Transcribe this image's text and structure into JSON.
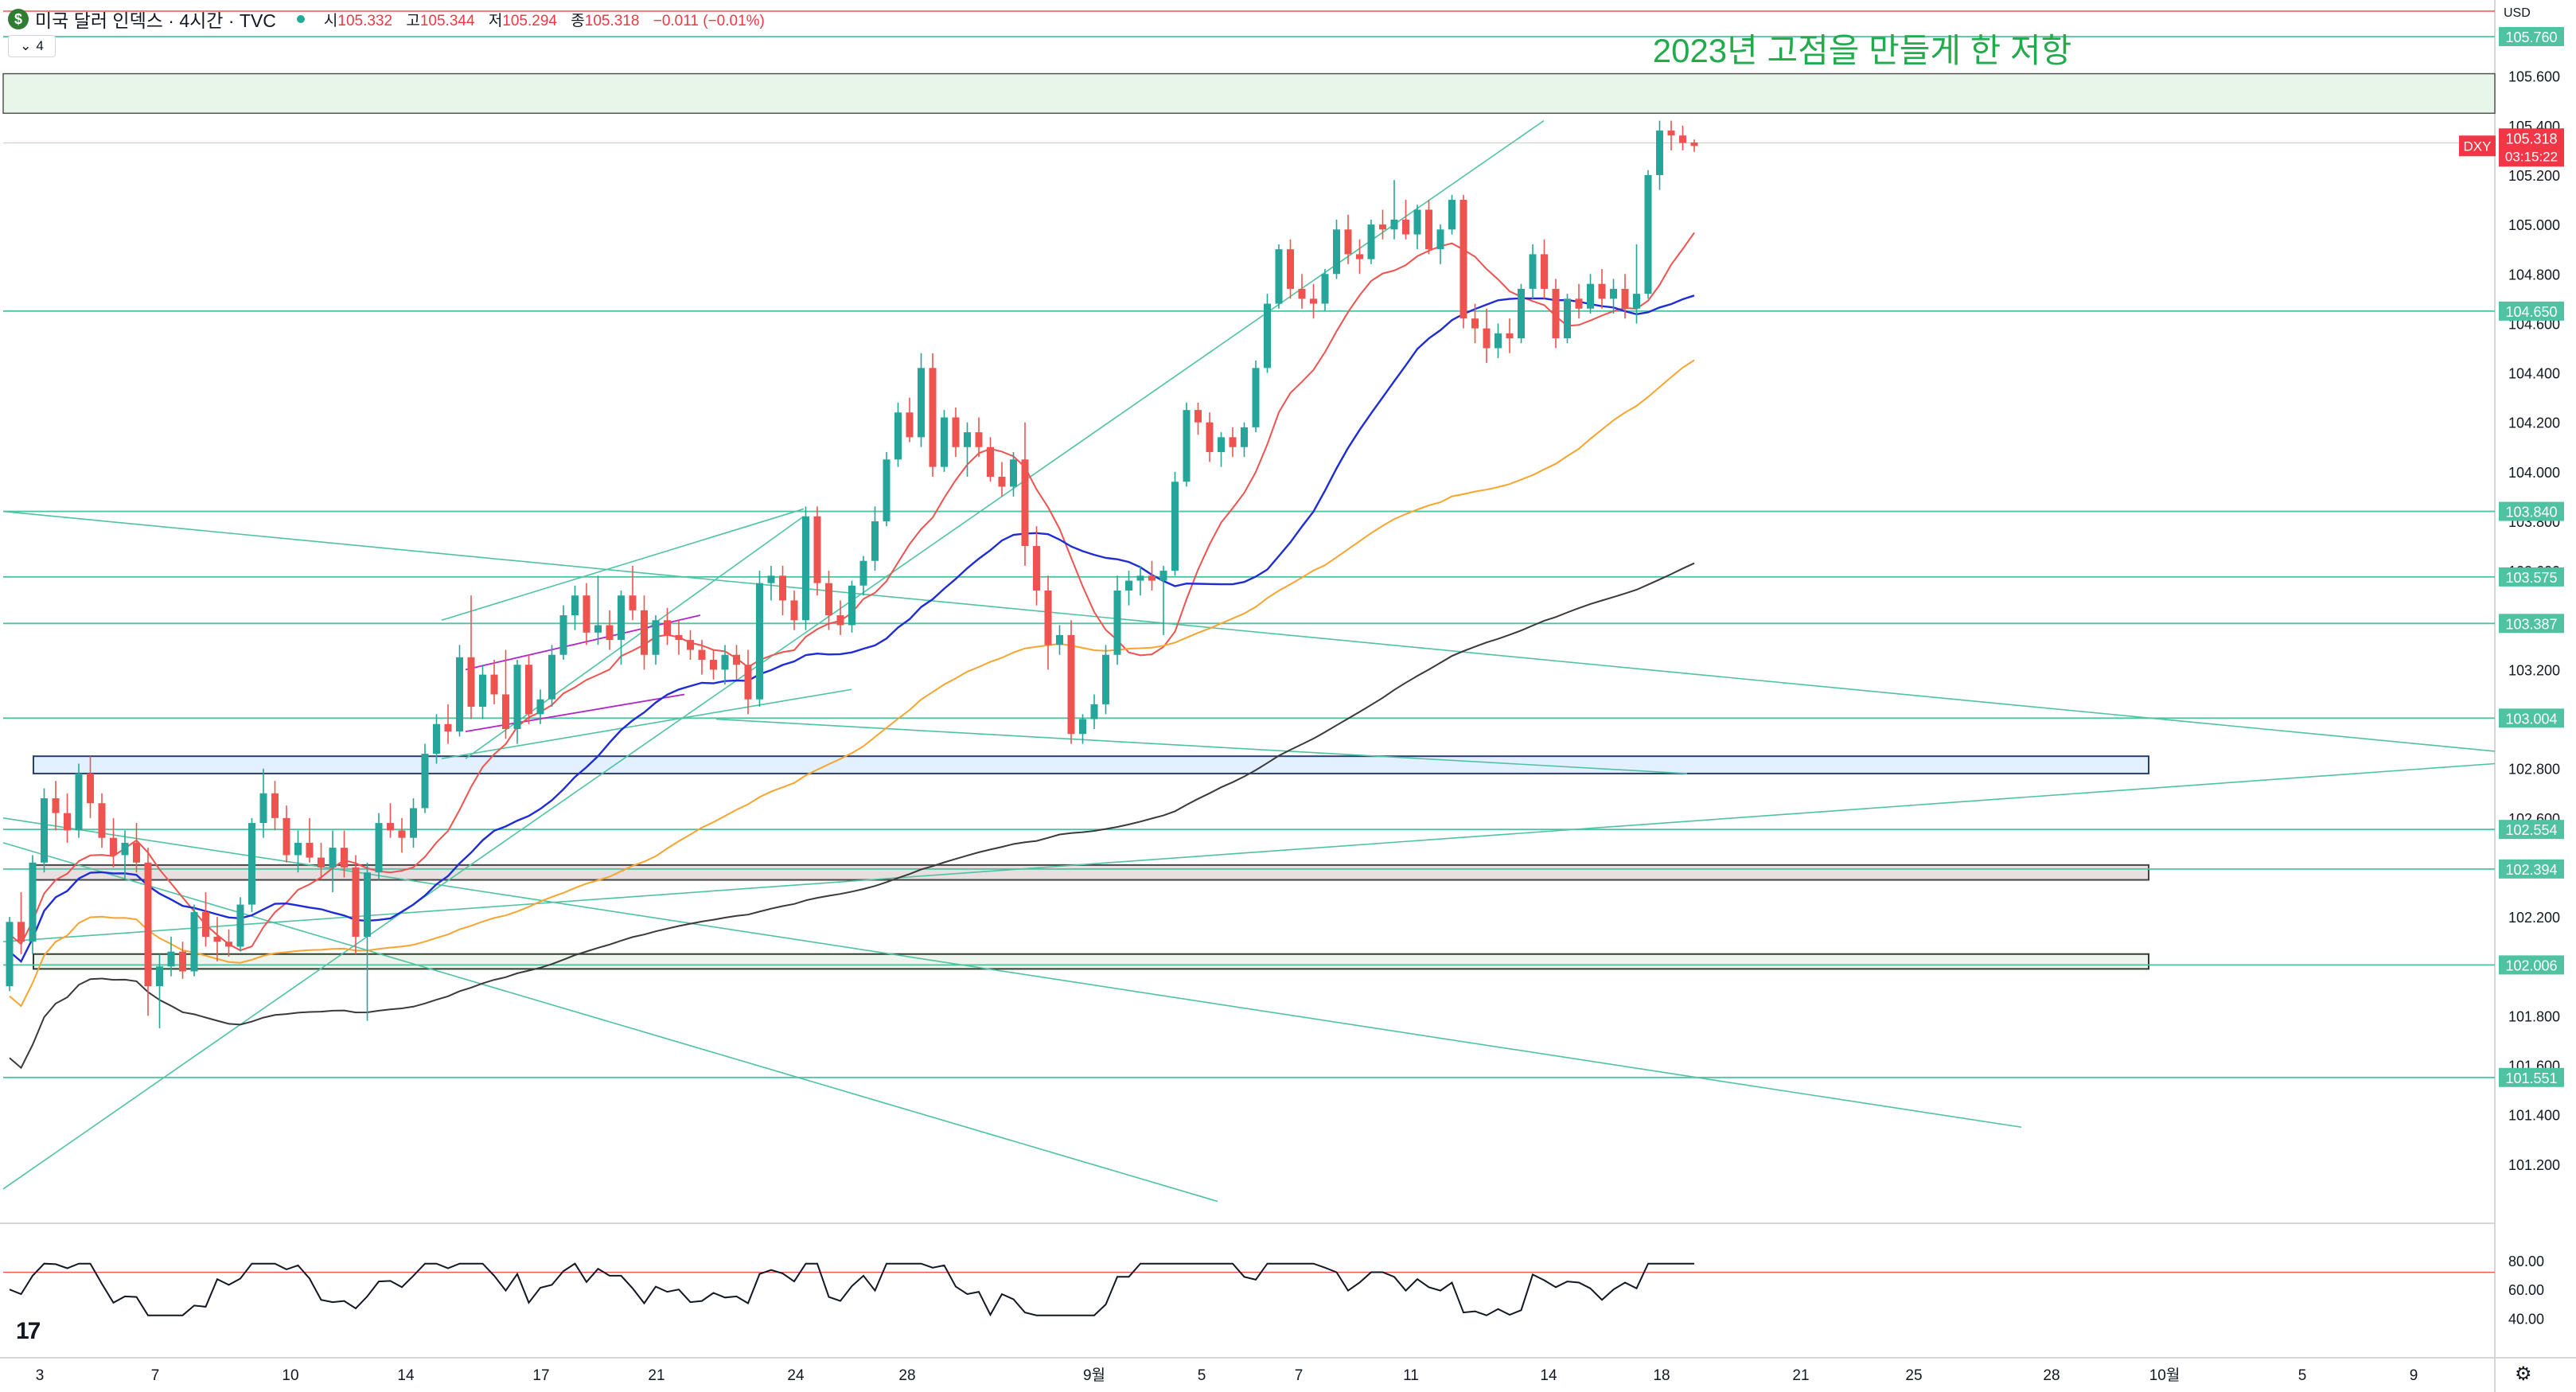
{
  "header": {
    "symbol_badge": "$",
    "title": "미국 달러 인덱스 · 4시간 · TVC",
    "ohlc": [
      {
        "label": "시",
        "value": "105.332"
      },
      {
        "label": "고",
        "value": "105.344"
      },
      {
        "label": "저",
        "value": "105.294"
      },
      {
        "label": "종",
        "value": "105.318"
      }
    ],
    "change": "−0.011 (−0.01%)",
    "indicator_count": "4",
    "currency": "USD"
  },
  "chart_data": {
    "type": "candlestick",
    "title": "2023년 고점을 만들게 한 저항",
    "ylim": [
      101.0,
      105.85
    ],
    "price_axis_ticks": [
      "105.600",
      "105.400",
      "105.200",
      "105.000",
      "104.800",
      "104.600",
      "104.400",
      "104.200",
      "104.000",
      "103.800",
      "103.600",
      "103.400",
      "103.200",
      "103.000",
      "102.800",
      "102.600",
      "102.400",
      "102.200",
      "102.000",
      "101.800",
      "101.600",
      "101.400",
      "101.200"
    ],
    "time_axis_ticks": [
      "3",
      "7",
      "10",
      "14",
      "17",
      "21",
      "24",
      "28",
      "9월",
      "5",
      "7",
      "11",
      "14",
      "18",
      "21",
      "25",
      "28",
      "10월",
      "5",
      "9"
    ],
    "horizontal_levels": [
      "105.760",
      "104.650",
      "103.840",
      "103.575",
      "103.387",
      "103.004",
      "102.554",
      "102.394",
      "102.006",
      "101.551"
    ],
    "current_price": {
      "symbol": "DXY",
      "price": "105.318",
      "countdown": "03:15:22"
    },
    "candles": [
      [
        101.92,
        102.2,
        101.9,
        102.18
      ],
      [
        102.18,
        102.3,
        102.05,
        102.1
      ],
      [
        102.1,
        102.45,
        102.05,
        102.42
      ],
      [
        102.42,
        102.72,
        102.38,
        102.68
      ],
      [
        102.68,
        102.75,
        102.55,
        102.62
      ],
      [
        102.62,
        102.7,
        102.5,
        102.55
      ],
      [
        102.55,
        102.82,
        102.52,
        102.78
      ],
      [
        102.78,
        102.85,
        102.6,
        102.66
      ],
      [
        102.66,
        102.7,
        102.48,
        102.52
      ],
      [
        102.52,
        102.6,
        102.4,
        102.45
      ],
      [
        102.45,
        102.55,
        102.35,
        102.5
      ],
      [
        102.5,
        102.58,
        102.38,
        102.42
      ],
      [
        102.42,
        102.48,
        101.8,
        101.92
      ],
      [
        101.92,
        102.05,
        101.75,
        102.0
      ],
      [
        102.0,
        102.12,
        101.96,
        102.06
      ],
      [
        102.06,
        102.1,
        101.95,
        101.98
      ],
      [
        101.98,
        102.25,
        101.96,
        102.22
      ],
      [
        102.22,
        102.3,
        102.08,
        102.12
      ],
      [
        102.12,
        102.2,
        102.02,
        102.1
      ],
      [
        102.1,
        102.15,
        102.04,
        102.08
      ],
      [
        102.08,
        102.28,
        102.06,
        102.25
      ],
      [
        102.25,
        102.6,
        102.22,
        102.58
      ],
      [
        102.58,
        102.8,
        102.52,
        102.7
      ],
      [
        102.7,
        102.75,
        102.55,
        102.6
      ],
      [
        102.6,
        102.65,
        102.42,
        102.45
      ],
      [
        102.45,
        102.55,
        102.38,
        102.5
      ],
      [
        102.5,
        102.6,
        102.42,
        102.44
      ],
      [
        102.44,
        102.5,
        102.35,
        102.4
      ],
      [
        102.4,
        102.55,
        102.3,
        102.48
      ],
      [
        102.48,
        102.55,
        102.36,
        102.4
      ],
      [
        102.4,
        102.45,
        102.05,
        102.12
      ],
      [
        102.12,
        102.42,
        101.78,
        102.38
      ],
      [
        102.38,
        102.62,
        102.35,
        102.58
      ],
      [
        102.58,
        102.66,
        102.52,
        102.55
      ],
      [
        102.55,
        102.6,
        102.46,
        102.52
      ],
      [
        102.52,
        102.68,
        102.48,
        102.64
      ],
      [
        102.64,
        102.9,
        102.62,
        102.86
      ],
      [
        102.86,
        103.02,
        102.82,
        102.98
      ],
      [
        102.98,
        103.06,
        102.9,
        102.95
      ],
      [
        102.95,
        103.3,
        102.93,
        103.25
      ],
      [
        103.25,
        103.5,
        103.0,
        103.05
      ],
      [
        103.05,
        103.22,
        103.0,
        103.18
      ],
      [
        103.18,
        103.24,
        103.06,
        103.1
      ],
      [
        103.1,
        103.28,
        102.92,
        102.96
      ],
      [
        102.96,
        103.24,
        102.9,
        103.22
      ],
      [
        103.22,
        103.26,
        102.98,
        103.02
      ],
      [
        103.02,
        103.12,
        102.98,
        103.08
      ],
      [
        103.08,
        103.3,
        103.05,
        103.26
      ],
      [
        103.26,
        103.46,
        103.24,
        103.42
      ],
      [
        103.42,
        103.54,
        103.36,
        103.5
      ],
      [
        103.5,
        103.55,
        103.3,
        103.35
      ],
      [
        103.35,
        103.58,
        103.3,
        103.38
      ],
      [
        103.38,
        103.44,
        103.28,
        103.32
      ],
      [
        103.32,
        103.52,
        103.22,
        103.5
      ],
      [
        103.5,
        103.62,
        103.4,
        103.44
      ],
      [
        103.44,
        103.5,
        103.2,
        103.26
      ],
      [
        103.26,
        103.42,
        103.22,
        103.4
      ],
      [
        103.4,
        103.45,
        103.3,
        103.34
      ],
      [
        103.34,
        103.4,
        103.26,
        103.32
      ],
      [
        103.32,
        103.36,
        103.24,
        103.28
      ],
      [
        103.28,
        103.32,
        103.18,
        103.24
      ],
      [
        103.24,
        103.28,
        103.16,
        103.2
      ],
      [
        103.2,
        103.3,
        103.14,
        103.26
      ],
      [
        103.26,
        103.3,
        103.16,
        103.22
      ],
      [
        103.22,
        103.28,
        103.02,
        103.08
      ],
      [
        103.08,
        103.6,
        103.05,
        103.55
      ],
      [
        103.55,
        103.62,
        103.48,
        103.58
      ],
      [
        103.58,
        103.62,
        103.42,
        103.48
      ],
      [
        103.48,
        103.52,
        103.36,
        103.4
      ],
      [
        103.4,
        103.86,
        103.36,
        103.82
      ],
      [
        103.82,
        103.86,
        103.5,
        103.55
      ],
      [
        103.55,
        103.6,
        103.36,
        103.42
      ],
      [
        103.42,
        103.48,
        103.34,
        103.38
      ],
      [
        103.38,
        103.56,
        103.35,
        103.54
      ],
      [
        103.54,
        103.66,
        103.5,
        103.64
      ],
      [
        103.64,
        103.86,
        103.6,
        103.8
      ],
      [
        103.8,
        104.08,
        103.78,
        104.05
      ],
      [
        104.05,
        104.28,
        104.02,
        104.24
      ],
      [
        104.24,
        104.3,
        104.12,
        104.14
      ],
      [
        104.14,
        104.48,
        104.1,
        104.42
      ],
      [
        104.42,
        104.48,
        103.98,
        104.02
      ],
      [
        104.02,
        104.25,
        104.0,
        104.22
      ],
      [
        104.22,
        104.26,
        104.06,
        104.1
      ],
      [
        104.1,
        104.2,
        103.98,
        104.16
      ],
      [
        104.16,
        104.22,
        104.06,
        104.1
      ],
      [
        104.1,
        104.14,
        103.96,
        103.98
      ],
      [
        103.98,
        104.04,
        103.9,
        103.94
      ],
      [
        103.94,
        104.08,
        103.9,
        104.05
      ],
      [
        104.05,
        104.2,
        103.62,
        103.7
      ],
      [
        103.7,
        103.78,
        103.46,
        103.52
      ],
      [
        103.52,
        103.58,
        103.2,
        103.3
      ],
      [
        103.3,
        103.38,
        103.26,
        103.34
      ],
      [
        103.34,
        103.4,
        102.9,
        102.94
      ],
      [
        102.94,
        103.02,
        102.9,
        103.0
      ],
      [
        103.0,
        103.1,
        102.96,
        103.06
      ],
      [
        103.06,
        103.3,
        103.02,
        103.26
      ],
      [
        103.26,
        103.58,
        103.22,
        103.52
      ],
      [
        103.52,
        103.6,
        103.46,
        103.56
      ],
      [
        103.56,
        103.62,
        103.5,
        103.58
      ],
      [
        103.58,
        103.64,
        103.52,
        103.56
      ],
      [
        103.56,
        103.62,
        103.34,
        103.6
      ],
      [
        103.6,
        104.0,
        103.58,
        103.96
      ],
      [
        103.96,
        104.28,
        103.94,
        104.25
      ],
      [
        104.25,
        104.28,
        104.15,
        104.2
      ],
      [
        104.2,
        104.24,
        104.04,
        104.08
      ],
      [
        104.08,
        104.16,
        104.02,
        104.14
      ],
      [
        104.14,
        104.18,
        104.06,
        104.1
      ],
      [
        104.1,
        104.2,
        104.06,
        104.18
      ],
      [
        104.18,
        104.45,
        104.16,
        104.42
      ],
      [
        104.42,
        104.72,
        104.4,
        104.68
      ],
      [
        104.68,
        104.92,
        104.66,
        104.9
      ],
      [
        104.9,
        104.94,
        104.7,
        104.74
      ],
      [
        104.74,
        104.8,
        104.66,
        104.7
      ],
      [
        104.7,
        104.76,
        104.62,
        104.68
      ],
      [
        104.68,
        104.82,
        104.65,
        104.8
      ],
      [
        104.8,
        105.02,
        104.78,
        104.98
      ],
      [
        104.98,
        105.04,
        104.84,
        104.88
      ],
      [
        104.88,
        104.94,
        104.8,
        104.86
      ],
      [
        104.86,
        105.02,
        104.84,
        105.0
      ],
      [
        105.0,
        105.06,
        104.94,
        104.98
      ],
      [
        104.98,
        105.18,
        104.94,
        105.02
      ],
      [
        105.02,
        105.1,
        104.94,
        104.96
      ],
      [
        104.96,
        105.08,
        104.9,
        105.06
      ],
      [
        105.06,
        105.1,
        104.88,
        104.9
      ],
      [
        104.9,
        105.0,
        104.84,
        104.98
      ],
      [
        104.98,
        105.12,
        104.96,
        105.1
      ],
      [
        105.1,
        105.12,
        104.58,
        104.62
      ],
      [
        104.62,
        104.68,
        104.52,
        104.58
      ],
      [
        104.58,
        104.66,
        104.44,
        104.5
      ],
      [
        104.5,
        104.6,
        104.46,
        104.56
      ],
      [
        104.56,
        104.62,
        104.48,
        104.54
      ],
      [
        104.54,
        104.76,
        104.52,
        104.74
      ],
      [
        104.74,
        104.92,
        104.7,
        104.88
      ],
      [
        104.88,
        104.94,
        104.7,
        104.74
      ],
      [
        104.74,
        104.78,
        104.5,
        104.54
      ],
      [
        104.54,
        104.72,
        104.52,
        104.7
      ],
      [
        104.7,
        104.76,
        104.62,
        104.66
      ],
      [
        104.66,
        104.8,
        104.64,
        104.76
      ],
      [
        104.76,
        104.82,
        104.66,
        104.7
      ],
      [
        104.7,
        104.78,
        104.64,
        104.74
      ],
      [
        104.74,
        104.8,
        104.62,
        104.66
      ],
      [
        104.66,
        104.92,
        104.6,
        104.72
      ],
      [
        104.72,
        105.22,
        104.7,
        105.2
      ],
      [
        105.2,
        105.42,
        105.14,
        105.38
      ],
      [
        105.38,
        105.42,
        105.3,
        105.36
      ],
      [
        105.36,
        105.4,
        105.3,
        105.33
      ],
      [
        105.332,
        105.344,
        105.294,
        105.318
      ]
    ],
    "rsi": {
      "upper_level": "80.00",
      "lower_level": "40.00",
      "middle_label": "60.00"
    }
  },
  "colors": {
    "up": "#26a69a",
    "down": "#ef5350",
    "ma_short": "#ef5350",
    "ma_mid": "#1e2cd6",
    "ma_long": "#f7a530",
    "ma_200": "#3a3a3a",
    "levels": "#4fc3a1",
    "annotation": "#22ab4c"
  }
}
